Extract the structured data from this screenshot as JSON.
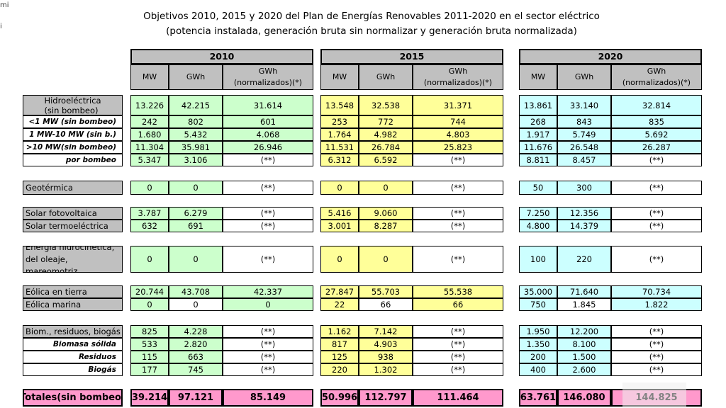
{
  "edge_text": [
    "mi",
    "i"
  ],
  "title": "Objetivos 2010, 2015 y 2020 del Plan de Energías Renovables 2011-2020 en el sector eléctrico",
  "subtitle": "(potencia instalada, generación bruta sin normalizar y generación bruta normalizada)",
  "colors": {
    "y2010": "#ccffcc",
    "y2015": "#ffff99",
    "y2020": "#ccffff",
    "totals": "#ff99cc",
    "header": "#c0c0c0"
  },
  "years": [
    {
      "label": "2010",
      "cols": [
        "MW",
        "GWh",
        "GWh\n(normalizados)(*)"
      ]
    },
    {
      "label": "2015",
      "cols": [
        "MW",
        "GWh",
        "GWh\n(normalizados)(*)"
      ]
    },
    {
      "label": "2020",
      "cols": [
        "MW",
        "GWh",
        "GWh\n(normalizados)(*)"
      ]
    }
  ],
  "rows": [
    {
      "label": "Hidroeléctrica\n(sin bombeo)",
      "style": "grey",
      "values": [
        "13.226",
        "42.215",
        "31.614",
        "13.548",
        "32.538",
        "31.371",
        "13.861",
        "33.140",
        "32.814"
      ]
    },
    {
      "label": "<1 MW (sin bombeo)",
      "style": "sub",
      "values": [
        "242",
        "802",
        "601",
        "253",
        "772",
        "744",
        "268",
        "843",
        "835"
      ]
    },
    {
      "label": "1 MW-10 MW (sin b.)",
      "style": "sub",
      "values": [
        "1.680",
        "5.432",
        "4.068",
        "1.764",
        "4.982",
        "4.803",
        "1.917",
        "5.749",
        "5.692"
      ]
    },
    {
      "label": ">10 MW(sin bombeo)",
      "style": "sub",
      "values": [
        "11.304",
        "35.981",
        "26.946",
        "11.531",
        "26.784",
        "25.823",
        "11.676",
        "26.548",
        "26.287"
      ]
    },
    {
      "label": "por bombeo",
      "style": "sub",
      "values": [
        "5.347",
        "3.106",
        "(**)",
        "6.312",
        "6.592",
        "(**)",
        "8.811",
        "8.457",
        "(**)"
      ]
    },
    {
      "label": "Geotérmica",
      "style": "grey-left",
      "values": [
        "0",
        "0",
        "(**)",
        "0",
        "0",
        "(**)",
        "50",
        "300",
        "(**)"
      ]
    },
    {
      "label": "Solar fotovoltaica",
      "style": "grey-left",
      "values": [
        "3.787",
        "6.279",
        "(**)",
        "5.416",
        "9.060",
        "(**)",
        "7.250",
        "12.356",
        "(**)"
      ]
    },
    {
      "label": "Solar termoeléctrica",
      "style": "grey-left",
      "values": [
        "632",
        "691",
        "(**)",
        "3.001",
        "8.287",
        "(**)",
        "4.800",
        "14.379",
        "(**)"
      ]
    },
    {
      "label": "Energía hidrocinética,\ndel oleaje, mareomotriz",
      "style": "grey-left",
      "values": [
        "0",
        "0",
        "(**)",
        "0",
        "0",
        "(**)",
        "100",
        "220",
        "(**)"
      ]
    },
    {
      "label": "Eólica en tierra",
      "style": "grey-left",
      "values": [
        "20.744",
        "43.708",
        "42.337",
        "27.847",
        "55.703",
        "55.538",
        "35.000",
        "71.640",
        "70.734"
      ]
    },
    {
      "label": "Eólica marina",
      "style": "grey-left",
      "values": [
        "0",
        "0",
        "0",
        "22",
        "66",
        "66",
        "750",
        "1.845",
        "1.822"
      ]
    },
    {
      "label": "Biom., residuos, biogás",
      "style": "grey-left",
      "values": [
        "825",
        "4.228",
        "(**)",
        "1.162",
        "7.142",
        "(**)",
        "1.950",
        "12.200",
        "(**)"
      ]
    },
    {
      "label": "Biomasa sólida",
      "style": "sub",
      "values": [
        "533",
        "2.820",
        "(**)",
        "817",
        "4.903",
        "(**)",
        "1.350",
        "8.100",
        "(**)"
      ]
    },
    {
      "label": "Residuos",
      "style": "sub",
      "values": [
        "115",
        "663",
        "(**)",
        "125",
        "938",
        "(**)",
        "200",
        "1.500",
        "(**)"
      ]
    },
    {
      "label": "Biogás",
      "style": "sub",
      "values": [
        "177",
        "745",
        "(**)",
        "220",
        "1.302",
        "(**)",
        "400",
        "2.600",
        "(**)"
      ]
    }
  ],
  "totals": {
    "label": "Totales(sin bombeo)",
    "values": [
      "39.214",
      "97.121",
      "85.149",
      "50.996",
      "112.797",
      "111.464",
      "63.761",
      "146.080",
      "144.825"
    ]
  }
}
